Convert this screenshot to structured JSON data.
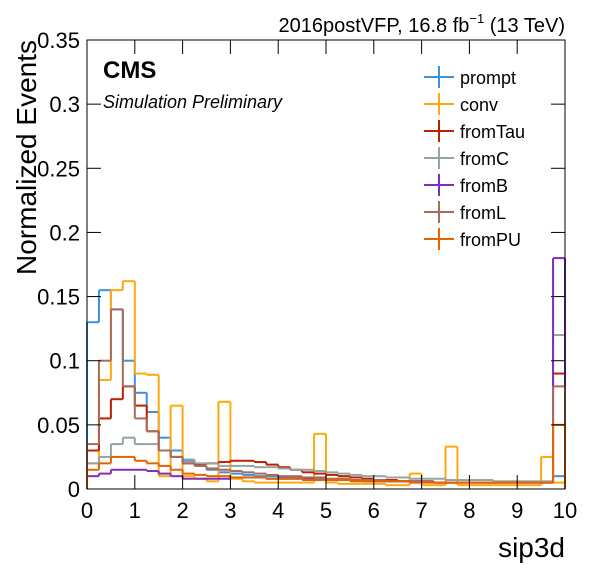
{
  "chart_data": {
    "type": "histogram",
    "lumi_label": [
      "2016postVFP, 16.8 fb",
      "−1",
      " (13 TeV)"
    ],
    "experiment": "CMS",
    "subtitle": "Simulation Preliminary",
    "x_label": "sip3d",
    "y_label": "Normalized Events",
    "bins": [
      0,
      0.25,
      0.5,
      0.75,
      1,
      1.25,
      1.5,
      1.75,
      2,
      2.25,
      2.5,
      2.75,
      3,
      3.25,
      3.5,
      3.75,
      4,
      4.25,
      4.5,
      4.75,
      5,
      5.25,
      5.5,
      5.75,
      6,
      6.25,
      6.5,
      6.75,
      7,
      7.25,
      7.5,
      7.75,
      8,
      8.25,
      8.5,
      8.75,
      9,
      9.25,
      9.5,
      9.75,
      10
    ],
    "xlim": [
      0,
      10
    ],
    "ylim": [
      0,
      0.35
    ],
    "xticks": [
      0,
      1,
      2,
      3,
      4,
      5,
      6,
      7,
      8,
      9,
      10
    ],
    "yticks": [
      0,
      0.05,
      0.1,
      0.15,
      0.2,
      0.25,
      0.3,
      0.35
    ],
    "series": [
      {
        "name": "prompt",
        "color": "#3f90da",
        "values": [
          0.13,
          0.155,
          0.14,
          0.1,
          0.075,
          0.06,
          0.04,
          0.03,
          0.022,
          0.018,
          0.015,
          0.013,
          0.012,
          0.011,
          0.01,
          0.01,
          0.009,
          0.009,
          0.008,
          0.008,
          0.007,
          0.007,
          0.007,
          0.006,
          0.006,
          0.006,
          0.006,
          0.005,
          0.005,
          0.005,
          0.005,
          0.005,
          0.005,
          0.005,
          0.005,
          0.005,
          0.005,
          0.005,
          0.005,
          0.01
        ]
      },
      {
        "name": "conv",
        "color": "#ffa90e",
        "values": [
          0.02,
          0.085,
          0.155,
          0.162,
          0.09,
          0.089,
          0.01,
          0.065,
          0.01,
          0.008,
          0.006,
          0.068,
          0.008,
          0.006,
          0.005,
          0.005,
          0.005,
          0.005,
          0.005,
          0.043,
          0.005,
          0.004,
          0.004,
          0.004,
          0.004,
          0.003,
          0.003,
          0.012,
          0.003,
          0.003,
          0.033,
          0.003,
          0.003,
          0.003,
          0.003,
          0.003,
          0.003,
          0.003,
          0.025,
          0.005
        ]
      },
      {
        "name": "fromTau",
        "color": "#bd1f01",
        "values": [
          0.03,
          0.055,
          0.07,
          0.08,
          0.065,
          0.045,
          0.03,
          0.025,
          0.02,
          0.019,
          0.02,
          0.021,
          0.022,
          0.022,
          0.021,
          0.019,
          0.017,
          0.015,
          0.013,
          0.012,
          0.011,
          0.01,
          0.009,
          0.008,
          0.007,
          0.007,
          0.006,
          0.006,
          0.006,
          0.005,
          0.005,
          0.005,
          0.005,
          0.005,
          0.005,
          0.005,
          0.005,
          0.005,
          0.005,
          0.09
        ]
      },
      {
        "name": "fromC",
        "color": "#94a4a2",
        "values": [
          0.02,
          0.025,
          0.035,
          0.04,
          0.035,
          0.035,
          0.03,
          0.025,
          0.023,
          0.02,
          0.02,
          0.018,
          0.018,
          0.018,
          0.017,
          0.017,
          0.016,
          0.015,
          0.015,
          0.014,
          0.013,
          0.012,
          0.011,
          0.01,
          0.01,
          0.009,
          0.009,
          0.008,
          0.008,
          0.008,
          0.007,
          0.007,
          0.007,
          0.007,
          0.006,
          0.006,
          0.006,
          0.006,
          0.006,
          0.12
        ]
      },
      {
        "name": "fromB",
        "color": "#832db6",
        "values": [
          0.01,
          0.012,
          0.015,
          0.015,
          0.015,
          0.014,
          0.012,
          0.01,
          0.008,
          0.008,
          0.008,
          0.008,
          0.009,
          0.009,
          0.009,
          0.008,
          0.008,
          0.008,
          0.008,
          0.007,
          0.007,
          0.007,
          0.007,
          0.006,
          0.006,
          0.006,
          0.006,
          0.006,
          0.006,
          0.005,
          0.005,
          0.005,
          0.005,
          0.005,
          0.005,
          0.005,
          0.005,
          0.005,
          0.005,
          0.18
        ]
      },
      {
        "name": "fromL",
        "color": "#a96b59",
        "values": [
          0.035,
          0.1,
          0.14,
          0.08,
          0.055,
          0.045,
          0.03,
          0.025,
          0.02,
          0.018,
          0.016,
          0.015,
          0.014,
          0.013,
          0.012,
          0.011,
          0.01,
          0.01,
          0.009,
          0.009,
          0.008,
          0.008,
          0.007,
          0.007,
          0.007,
          0.006,
          0.006,
          0.006,
          0.006,
          0.005,
          0.005,
          0.005,
          0.005,
          0.005,
          0.005,
          0.005,
          0.005,
          0.005,
          0.005,
          0.08
        ]
      },
      {
        "name": "fromPU",
        "color": "#e76300",
        "values": [
          0.015,
          0.02,
          0.025,
          0.025,
          0.022,
          0.02,
          0.018,
          0.015,
          0.012,
          0.011,
          0.01,
          0.01,
          0.009,
          0.009,
          0.009,
          0.008,
          0.008,
          0.008,
          0.007,
          0.007,
          0.007,
          0.007,
          0.006,
          0.006,
          0.006,
          0.006,
          0.006,
          0.005,
          0.005,
          0.005,
          0.005,
          0.005,
          0.005,
          0.005,
          0.005,
          0.005,
          0.005,
          0.005,
          0.005,
          0.05
        ]
      }
    ]
  }
}
